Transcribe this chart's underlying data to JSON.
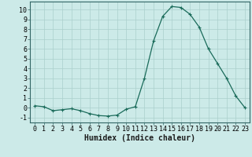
{
  "x": [
    0,
    1,
    2,
    3,
    4,
    5,
    6,
    7,
    8,
    9,
    10,
    11,
    12,
    13,
    14,
    15,
    16,
    17,
    18,
    19,
    20,
    21,
    22,
    23
  ],
  "y": [
    0.2,
    0.1,
    -0.3,
    -0.2,
    -0.1,
    -0.3,
    -0.6,
    -0.8,
    -0.85,
    -0.75,
    -0.15,
    0.1,
    3.0,
    6.8,
    9.3,
    10.3,
    10.2,
    9.5,
    8.2,
    6.0,
    4.5,
    3.0,
    1.2,
    0.0
  ],
  "line_color": "#1a6b5a",
  "marker": "+",
  "marker_size": 3,
  "marker_linewidth": 0.8,
  "line_width": 0.9,
  "background_color": "#cceae8",
  "grid_color": "#aacfcc",
  "xlabel": "Humidex (Indice chaleur)",
  "xlabel_fontsize": 7,
  "tick_fontsize": 6,
  "xlim": [
    -0.5,
    23.5
  ],
  "ylim": [
    -1.5,
    10.8
  ],
  "yticks": [
    -1,
    0,
    1,
    2,
    3,
    4,
    5,
    6,
    7,
    8,
    9,
    10
  ],
  "xticks": [
    0,
    1,
    2,
    3,
    4,
    5,
    6,
    7,
    8,
    9,
    10,
    11,
    12,
    13,
    14,
    15,
    16,
    17,
    18,
    19,
    20,
    21,
    22,
    23
  ]
}
